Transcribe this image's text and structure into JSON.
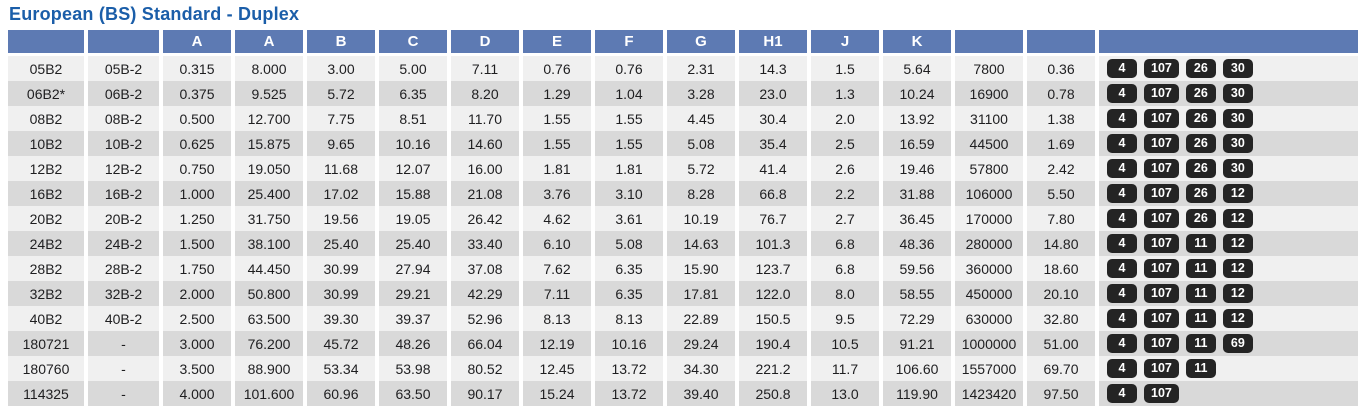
{
  "title": "European (BS) Standard - Duplex",
  "colors": {
    "title_blue": "#1b5ea9",
    "header_blue": "#5d7ab3",
    "row_light": "#f0f0f0",
    "row_dark": "#d9d9d9",
    "badge_dark": "#242424",
    "cell_text": "#1e1e20"
  },
  "table": {
    "headers": [
      "",
      "",
      "A",
      "A",
      "B",
      "C",
      "D",
      "E",
      "F",
      "G",
      "H1",
      "J",
      "K",
      "",
      "",
      ""
    ],
    "rows": [
      {
        "cells": [
          "05B2",
          "05B-2",
          "0.315",
          "8.000",
          "3.00",
          "5.00",
          "7.11",
          "0.76",
          "0.76",
          "2.31",
          "14.3",
          "1.5",
          "5.64",
          "7800",
          "0.36"
        ],
        "badges": [
          "4",
          "107",
          "26",
          "30"
        ]
      },
      {
        "cells": [
          "06B2*",
          "06B-2",
          "0.375",
          "9.525",
          "5.72",
          "6.35",
          "8.20",
          "1.29",
          "1.04",
          "3.28",
          "23.0",
          "1.3",
          "10.24",
          "16900",
          "0.78"
        ],
        "badges": [
          "4",
          "107",
          "26",
          "30"
        ]
      },
      {
        "cells": [
          "08B2",
          "08B-2",
          "0.500",
          "12.700",
          "7.75",
          "8.51",
          "11.70",
          "1.55",
          "1.55",
          "4.45",
          "30.4",
          "2.0",
          "13.92",
          "31100",
          "1.38"
        ],
        "badges": [
          "4",
          "107",
          "26",
          "30"
        ]
      },
      {
        "cells": [
          "10B2",
          "10B-2",
          "0.625",
          "15.875",
          "9.65",
          "10.16",
          "14.60",
          "1.55",
          "1.55",
          "5.08",
          "35.4",
          "2.5",
          "16.59",
          "44500",
          "1.69"
        ],
        "badges": [
          "4",
          "107",
          "26",
          "30"
        ]
      },
      {
        "cells": [
          "12B2",
          "12B-2",
          "0.750",
          "19.050",
          "11.68",
          "12.07",
          "16.00",
          "1.81",
          "1.81",
          "5.72",
          "41.4",
          "2.6",
          "19.46",
          "57800",
          "2.42"
        ],
        "badges": [
          "4",
          "107",
          "26",
          "30"
        ]
      },
      {
        "cells": [
          "16B2",
          "16B-2",
          "1.000",
          "25.400",
          "17.02",
          "15.88",
          "21.08",
          "3.76",
          "3.10",
          "8.28",
          "66.8",
          "2.2",
          "31.88",
          "106000",
          "5.50"
        ],
        "badges": [
          "4",
          "107",
          "26",
          "12"
        ]
      },
      {
        "cells": [
          "20B2",
          "20B-2",
          "1.250",
          "31.750",
          "19.56",
          "19.05",
          "26.42",
          "4.62",
          "3.61",
          "10.19",
          "76.7",
          "2.7",
          "36.45",
          "170000",
          "7.80"
        ],
        "badges": [
          "4",
          "107",
          "26",
          "12"
        ]
      },
      {
        "cells": [
          "24B2",
          "24B-2",
          "1.500",
          "38.100",
          "25.40",
          "25.40",
          "33.40",
          "6.10",
          "5.08",
          "14.63",
          "101.3",
          "6.8",
          "48.36",
          "280000",
          "14.80"
        ],
        "badges": [
          "4",
          "107",
          "11",
          "12"
        ]
      },
      {
        "cells": [
          "28B2",
          "28B-2",
          "1.750",
          "44.450",
          "30.99",
          "27.94",
          "37.08",
          "7.62",
          "6.35",
          "15.90",
          "123.7",
          "6.8",
          "59.56",
          "360000",
          "18.60"
        ],
        "badges": [
          "4",
          "107",
          "11",
          "12"
        ]
      },
      {
        "cells": [
          "32B2",
          "32B-2",
          "2.000",
          "50.800",
          "30.99",
          "29.21",
          "42.29",
          "7.11",
          "6.35",
          "17.81",
          "122.0",
          "8.0",
          "58.55",
          "450000",
          "20.10"
        ],
        "badges": [
          "4",
          "107",
          "11",
          "12"
        ]
      },
      {
        "cells": [
          "40B2",
          "40B-2",
          "2.500",
          "63.500",
          "39.30",
          "39.37",
          "52.96",
          "8.13",
          "8.13",
          "22.89",
          "150.5",
          "9.5",
          "72.29",
          "630000",
          "32.80"
        ],
        "badges": [
          "4",
          "107",
          "11",
          "12"
        ]
      },
      {
        "cells": [
          "180721",
          "-",
          "3.000",
          "76.200",
          "45.72",
          "48.26",
          "66.04",
          "12.19",
          "10.16",
          "29.24",
          "190.4",
          "10.5",
          "91.21",
          "1000000",
          "51.00"
        ],
        "badges": [
          "4",
          "107",
          "11",
          "69"
        ]
      },
      {
        "cells": [
          "180760",
          "-",
          "3.500",
          "88.900",
          "53.34",
          "53.98",
          "80.52",
          "12.45",
          "13.72",
          "34.30",
          "221.2",
          "11.7",
          "106.60",
          "1557000",
          "69.70"
        ],
        "badges": [
          "4",
          "107",
          "11"
        ]
      },
      {
        "cells": [
          "114325",
          "-",
          "4.000",
          "101.600",
          "60.96",
          "63.50",
          "90.17",
          "15.24",
          "13.72",
          "39.40",
          "250.8",
          "13.0",
          "119.90",
          "1423420",
          "97.50"
        ],
        "badges": [
          "4",
          "107"
        ]
      }
    ]
  }
}
